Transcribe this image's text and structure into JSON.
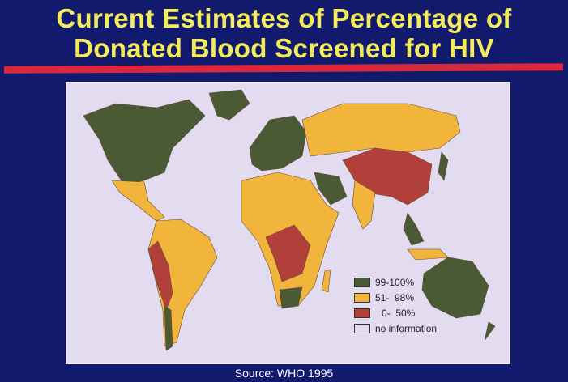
{
  "title": {
    "line1": "Current Estimates of Percentage of",
    "line2": "Donated Blood Screened for HIV"
  },
  "legend": [
    {
      "label": "99-100%",
      "color": "#4a5a34"
    },
    {
      "label": "51-  98%",
      "color": "#f2b53c"
    },
    {
      "label": "0-  50%",
      "color": "#b2403a"
    },
    {
      "label": "no information",
      "color": "#e3dbef"
    }
  ],
  "source": "Source: WHO 1995"
}
